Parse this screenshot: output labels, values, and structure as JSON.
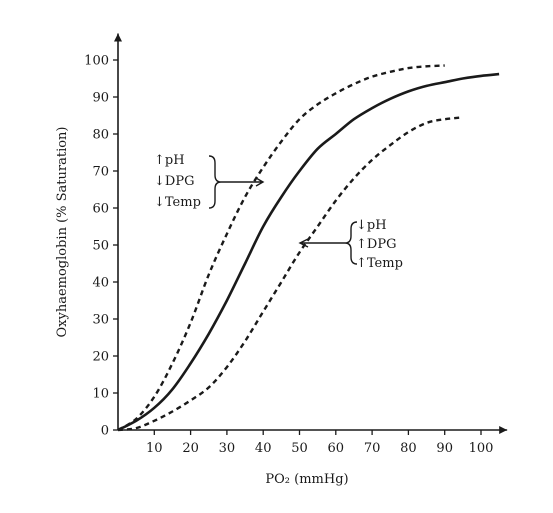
{
  "chart_data": {
    "type": "line",
    "xlabel": "PO₂ (mmHg)",
    "ylabel": "Oxyhaemoglobin (% Saturation)",
    "xlim": [
      0,
      105
    ],
    "ylim": [
      0,
      105
    ],
    "x_ticks": [
      "10",
      "20",
      "30",
      "40",
      "50",
      "60",
      "70",
      "80",
      "90",
      "100"
    ],
    "y_ticks": [
      "0",
      "10",
      "20",
      "30",
      "40",
      "50",
      "60",
      "70",
      "80",
      "90",
      "100"
    ],
    "grid": false,
    "legend": "none",
    "series": [
      {
        "style": "dashed",
        "x": [
          0,
          5,
          10,
          15,
          20,
          25,
          30,
          35,
          40,
          45,
          50,
          55,
          60,
          65,
          70,
          75,
          80,
          85,
          90
        ],
        "y": [
          0,
          3,
          9,
          18,
          29,
          42,
          53,
          63,
          71,
          78,
          84,
          88,
          91,
          93.5,
          95.5,
          96.8,
          97.8,
          98.3,
          98.5
        ]
      },
      {
        "style": "solid",
        "x": [
          0,
          5,
          10,
          15,
          20,
          25,
          30,
          35,
          40,
          45,
          50,
          55,
          60,
          65,
          70,
          75,
          80,
          85,
          90,
          95,
          100,
          105
        ],
        "y": [
          0,
          2.5,
          6,
          11,
          18,
          26,
          35,
          45,
          55,
          63,
          70,
          76,
          80,
          84,
          87,
          89.5,
          91.5,
          93,
          94,
          95,
          95.7,
          96.2
        ]
      },
      {
        "style": "dashed",
        "x": [
          0,
          5,
          10,
          15,
          20,
          25,
          30,
          35,
          40,
          45,
          50,
          55,
          60,
          65,
          70,
          75,
          80,
          85,
          90,
          95
        ],
        "y": [
          0,
          0.5,
          2.5,
          5,
          8,
          11.5,
          17,
          24,
          32,
          40,
          48,
          55,
          62,
          68,
          73,
          77,
          80.5,
          83,
          84,
          84.5
        ]
      }
    ],
    "annotations": [
      {
        "lines": [
          "↑pH",
          "↓DPG",
          "↓Temp"
        ],
        "points_to_series": 0
      },
      {
        "lines": [
          "↓pH",
          "↑DPG",
          "↑Temp"
        ],
        "points_to_series": 2
      }
    ]
  }
}
